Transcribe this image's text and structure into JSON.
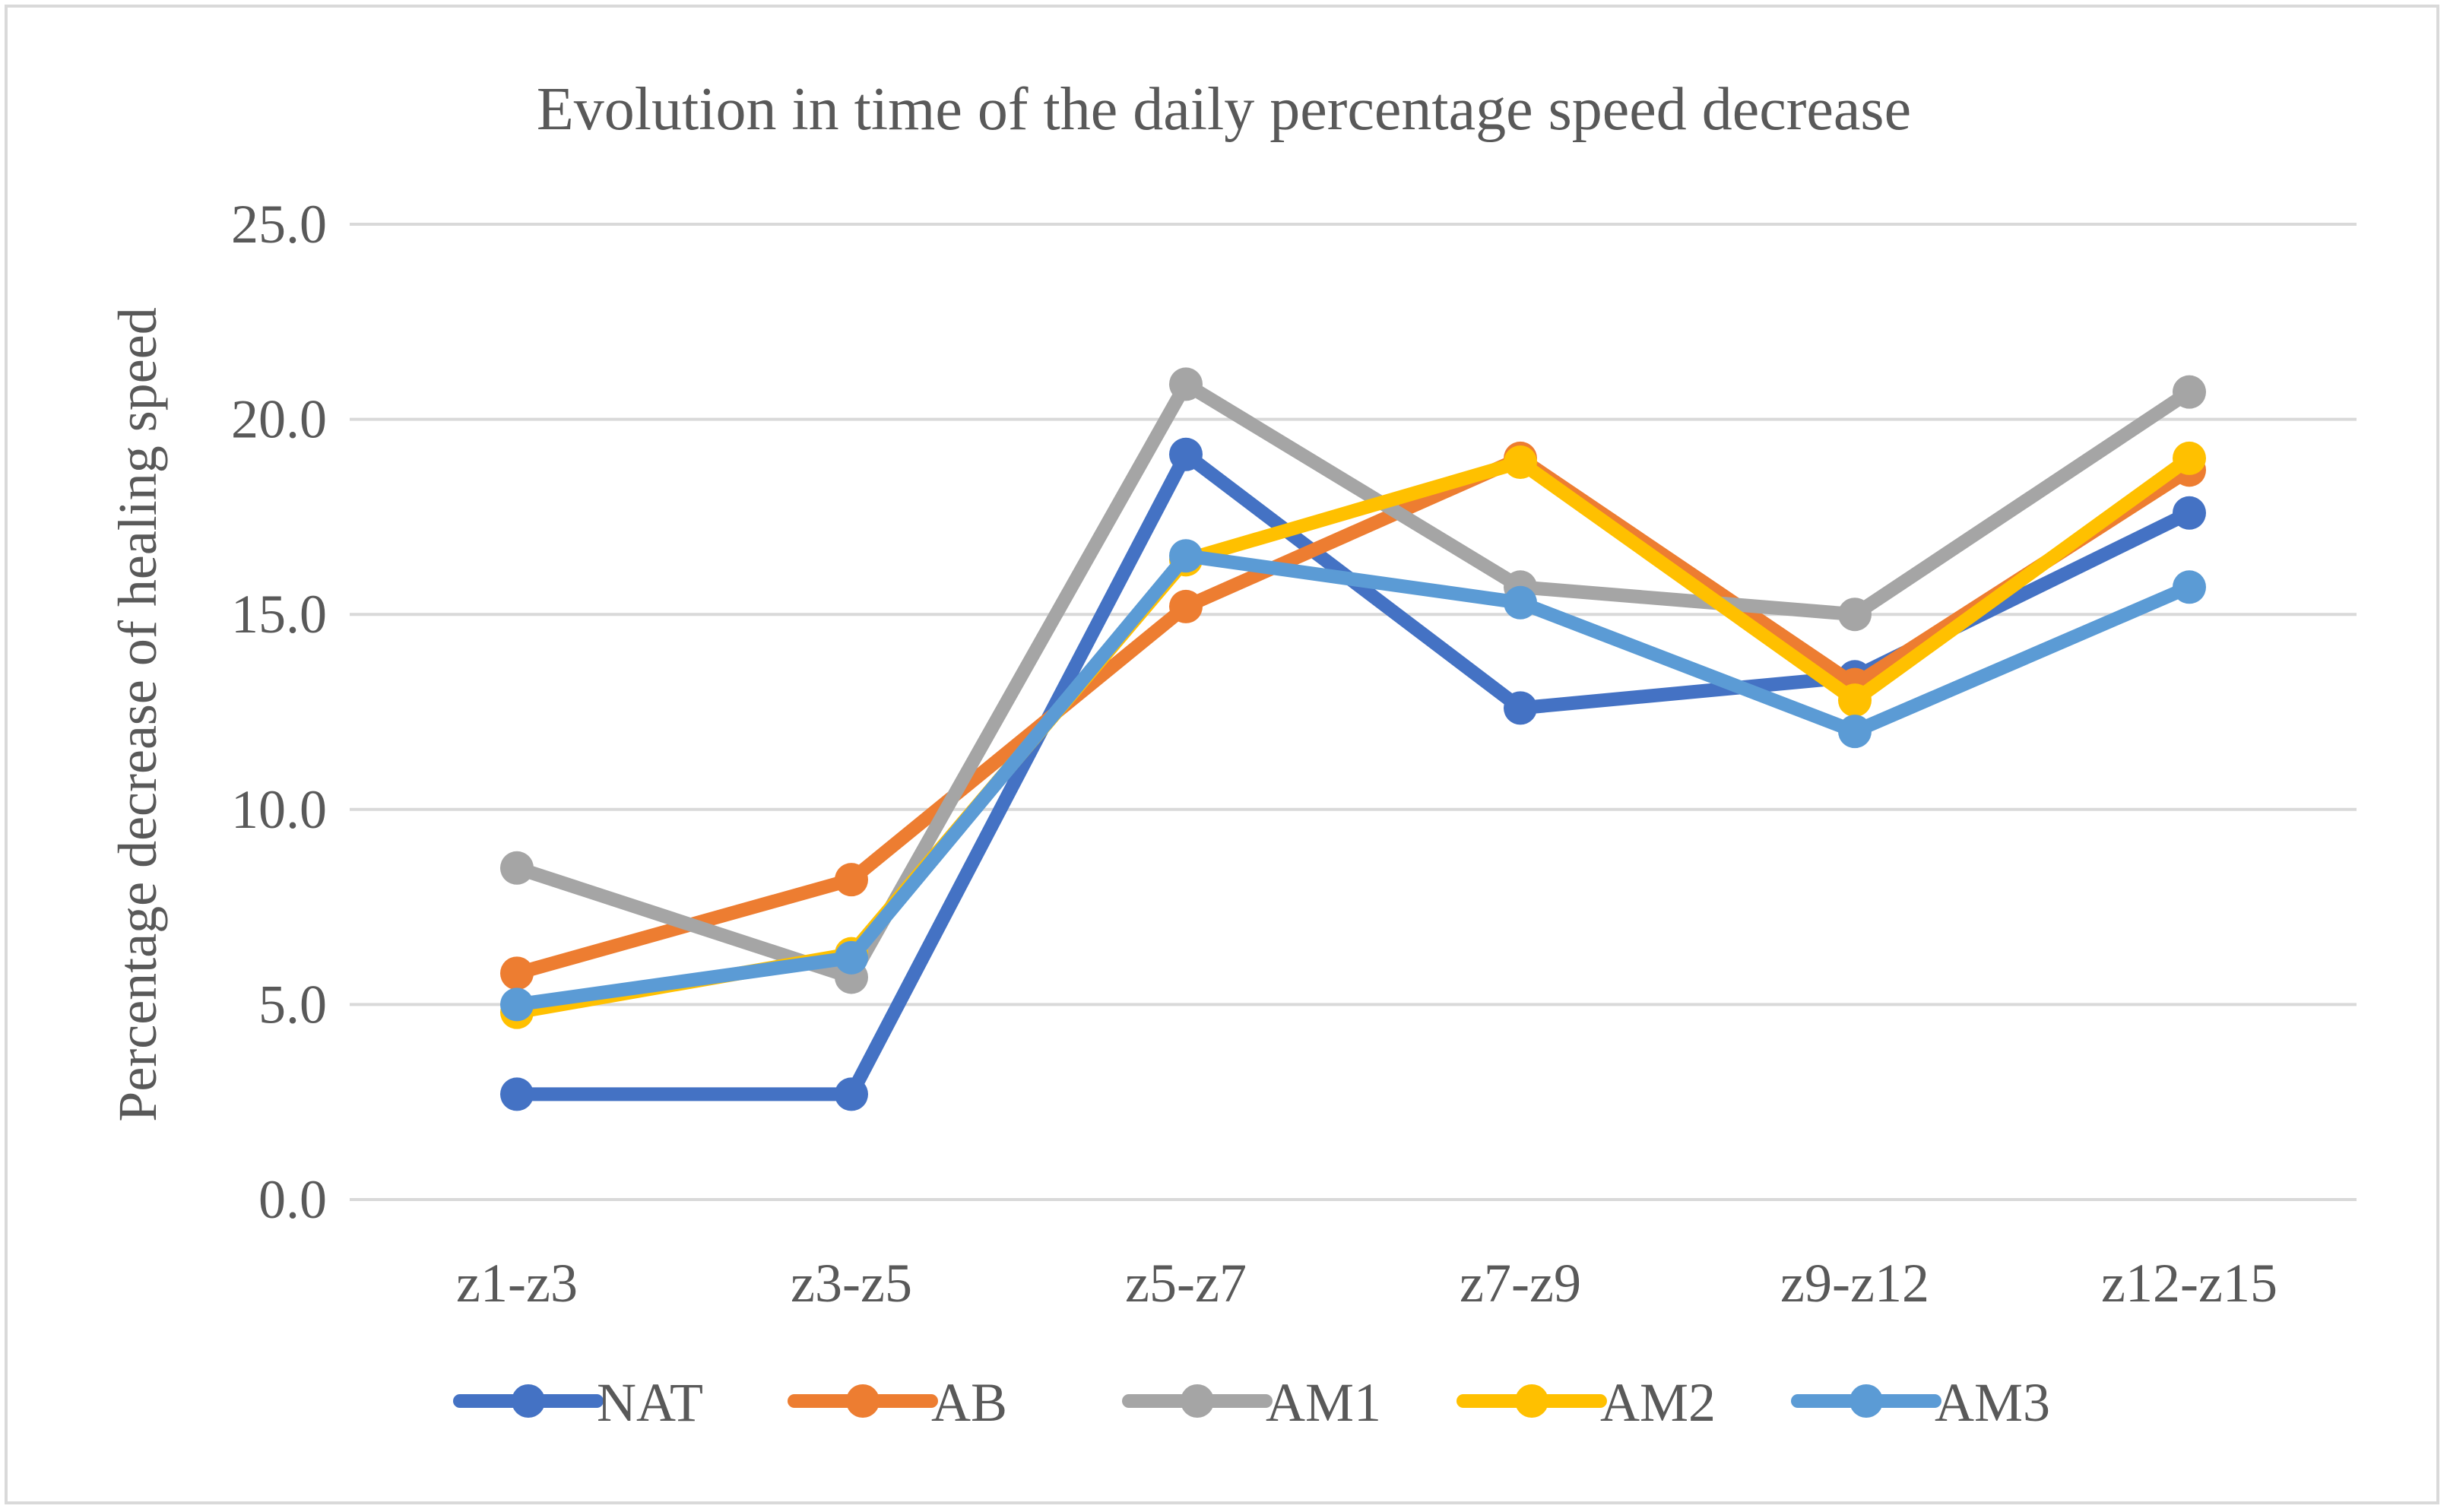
{
  "chart_data": {
    "type": "line",
    "title": "Evolution in time of the daily percentage speed decrease",
    "xlabel": "",
    "ylabel": "Percentage decrease of healing speed",
    "ylim": [
      0,
      25
    ],
    "yticks": [
      "0.0",
      "5.0",
      "10.0",
      "15.0",
      "20.0",
      "25.0"
    ],
    "ytick_values": [
      0,
      5,
      10,
      15,
      20,
      25
    ],
    "categories": [
      "z1-z3",
      "z3-z5",
      "z5-z7",
      "z7-z9",
      "z9-z12",
      "z12-z15"
    ],
    "grid": true,
    "legend_position": "bottom",
    "series": [
      {
        "name": "NAT",
        "color": "#4472c4",
        "values": [
          2.7,
          2.7,
          19.1,
          12.6,
          13.4,
          17.6
        ]
      },
      {
        "name": "AB",
        "color": "#ed7d31",
        "values": [
          5.8,
          8.2,
          15.2,
          19.0,
          13.2,
          18.7
        ]
      },
      {
        "name": "AM1",
        "color": "#a5a5a5",
        "values": [
          8.5,
          5.7,
          20.9,
          15.7,
          15.0,
          20.7
        ]
      },
      {
        "name": "AM2",
        "color": "#ffc000",
        "values": [
          4.8,
          6.3,
          16.4,
          18.9,
          12.8,
          19.0
        ]
      },
      {
        "name": "AM3",
        "color": "#5b9bd5",
        "values": [
          5.0,
          6.2,
          16.5,
          15.3,
          12.0,
          15.7
        ]
      }
    ]
  }
}
